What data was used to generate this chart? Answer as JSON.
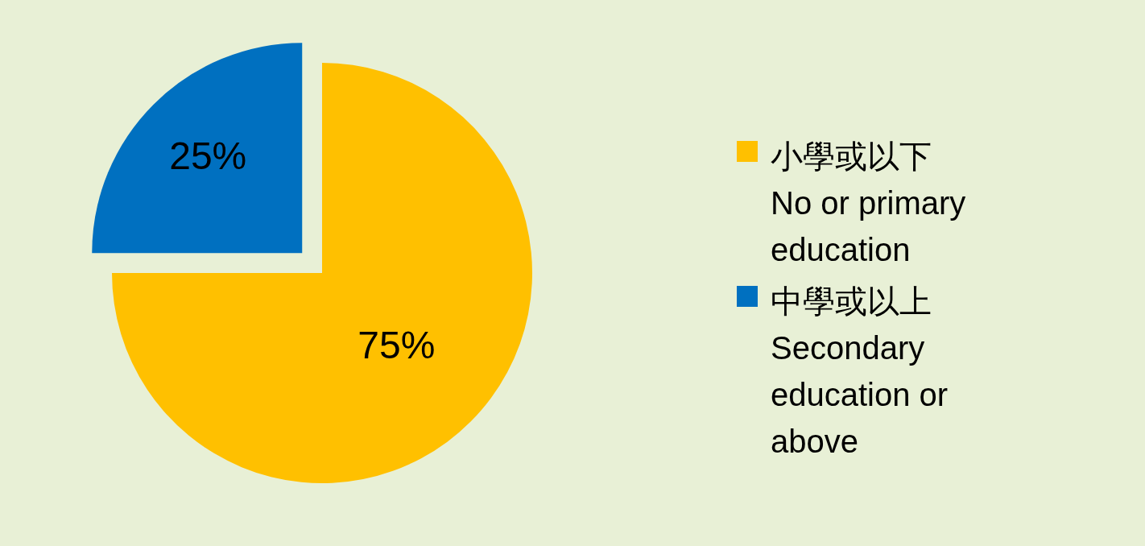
{
  "chart_data": {
    "type": "pie",
    "categories": [
      "小學或以下\nNo or primary education",
      "中學或以上\nSecondary education or above"
    ],
    "values": [
      75,
      25
    ],
    "colors": [
      "#ffc000",
      "#0070c0"
    ],
    "value_labels": [
      "75%",
      "25%"
    ],
    "legend": "right"
  }
}
